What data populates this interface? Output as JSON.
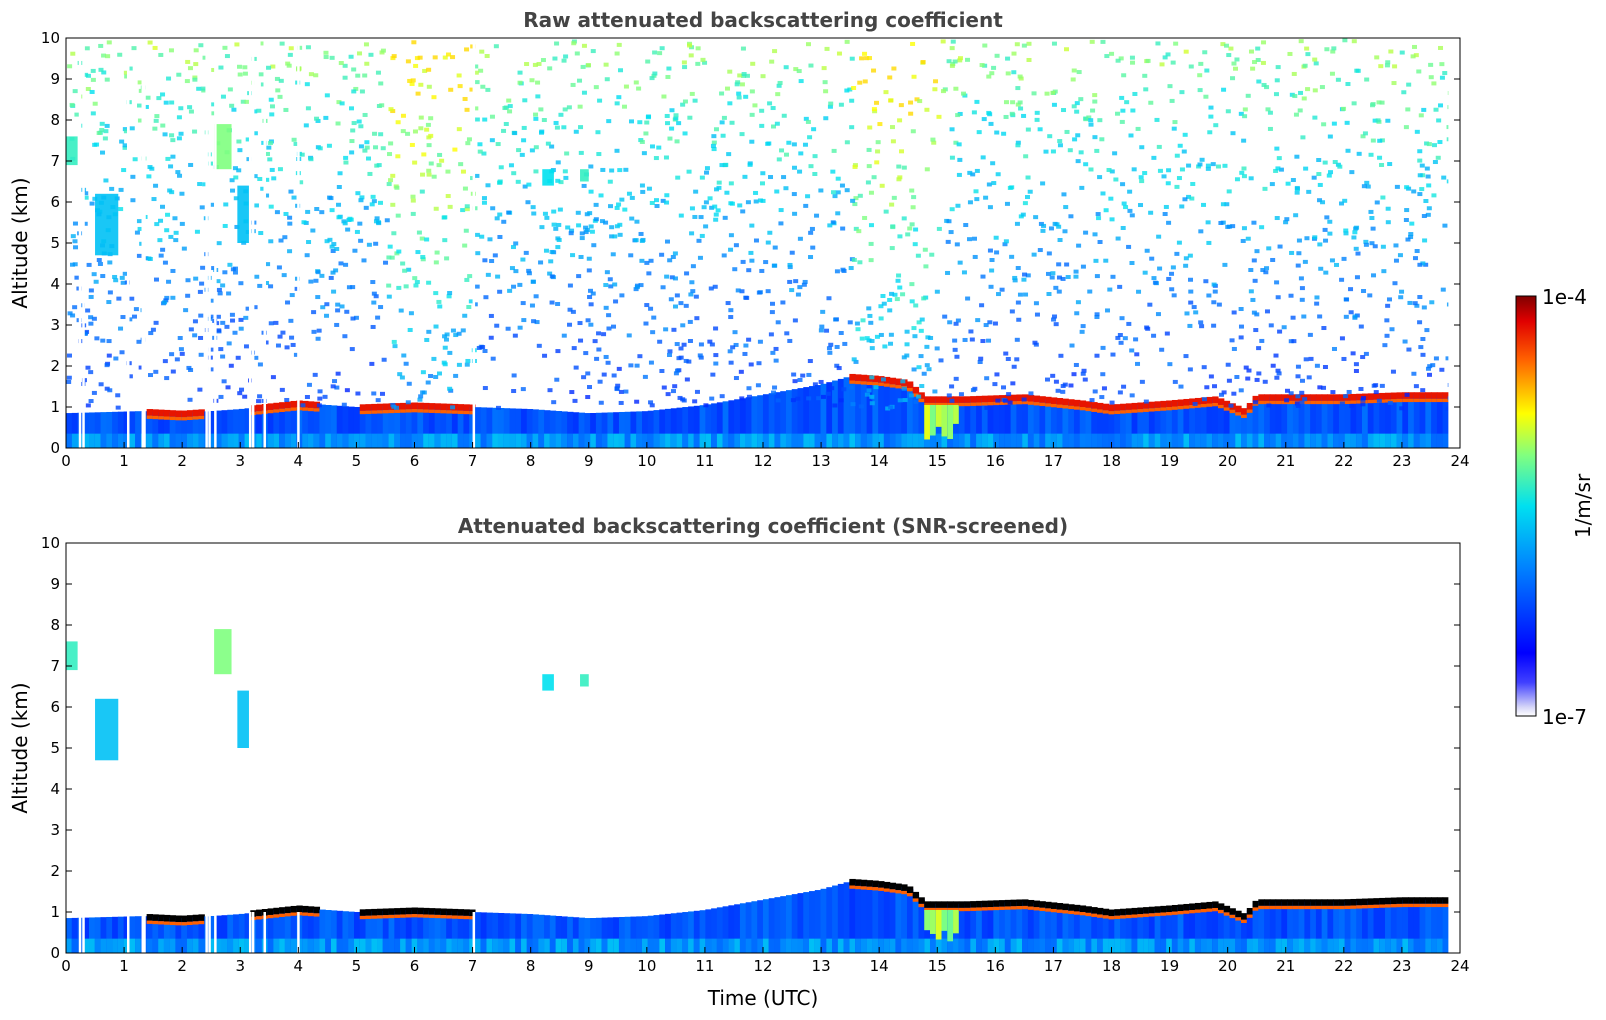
{
  "chart_data": [
    {
      "type": "heatmap",
      "title": "Raw attenuated backscattering coefficient",
      "xlabel": "",
      "ylabel": "Altitude (km)",
      "xlim": [
        0,
        24
      ],
      "ylim": [
        0,
        10
      ],
      "xticks": [
        0,
        1,
        2,
        3,
        4,
        5,
        6,
        7,
        8,
        9,
        10,
        11,
        12,
        13,
        14,
        15,
        16,
        17,
        18,
        19,
        20,
        21,
        22,
        23,
        24
      ],
      "yticks": [
        0,
        1,
        2,
        3,
        4,
        5,
        6,
        7,
        8,
        9,
        10
      ],
      "data_end_time": 23.8,
      "screened": false,
      "boundary_layer_top_km": [
        [
          0,
          0.85
        ],
        [
          1.3,
          0.9
        ],
        [
          2,
          0.85
        ],
        [
          3,
          0.95
        ],
        [
          4,
          1.1
        ],
        [
          5,
          1.0
        ],
        [
          6,
          1.05
        ],
        [
          7,
          1.0
        ],
        [
          8,
          0.95
        ],
        [
          9,
          0.85
        ],
        [
          10,
          0.9
        ],
        [
          11,
          1.05
        ],
        [
          12,
          1.3
        ],
        [
          13,
          1.55
        ],
        [
          13.5,
          1.75
        ],
        [
          14,
          1.7
        ],
        [
          14.5,
          1.6
        ],
        [
          14.8,
          1.2
        ],
        [
          15.5,
          1.2
        ],
        [
          16.5,
          1.25
        ],
        [
          17.5,
          1.1
        ],
        [
          18,
          1.0
        ],
        [
          19,
          1.1
        ],
        [
          19.8,
          1.2
        ],
        [
          20.3,
          0.9
        ],
        [
          20.5,
          1.25
        ],
        [
          21,
          1.25
        ],
        [
          22,
          1.25
        ],
        [
          23,
          1.3
        ],
        [
          23.8,
          1.3
        ]
      ],
      "elevated_layers": [
        {
          "t": [
            0,
            0.2
          ],
          "alt_km": [
            6.9,
            7.6
          ],
          "level": 0.55
        },
        {
          "t": [
            0.5,
            0.9
          ],
          "alt_km": [
            4.7,
            6.2
          ],
          "level": 0.45
        },
        {
          "t": [
            2.55,
            2.85
          ],
          "alt_km": [
            6.8,
            7.9
          ],
          "level": 0.62
        },
        {
          "t": [
            2.95,
            3.15
          ],
          "alt_km": [
            5.0,
            6.4
          ],
          "level": 0.45
        },
        {
          "t": [
            8.2,
            8.4
          ],
          "alt_km": [
            6.4,
            6.8
          ],
          "level": 0.5
        },
        {
          "t": [
            8.85,
            9.0
          ],
          "alt_km": [
            6.5,
            6.8
          ],
          "level": 0.55
        }
      ],
      "data_gaps_utc": [
        0.22,
        0.28,
        1.05,
        1.3,
        1.33,
        2.4,
        2.45,
        2.55,
        3.15,
        3.2,
        3.4,
        3.98,
        7.0
      ]
    },
    {
      "type": "heatmap",
      "title": "Attenuated backscattering coefficient (SNR-screened)",
      "xlabel": "Time (UTC)",
      "ylabel": "Altitude (km)",
      "xlim": [
        0,
        24
      ],
      "ylim": [
        0,
        10
      ],
      "xticks": [
        0,
        1,
        2,
        3,
        4,
        5,
        6,
        7,
        8,
        9,
        10,
        11,
        12,
        13,
        14,
        15,
        16,
        17,
        18,
        19,
        20,
        21,
        22,
        23,
        24
      ],
      "yticks": [
        0,
        1,
        2,
        3,
        4,
        5,
        6,
        7,
        8,
        9,
        10
      ],
      "data_end_time": 23.8,
      "screened": true
    }
  ],
  "colorbar": {
    "min_label": "1e-7",
    "max_label": "1e-4",
    "label": "1/m/sr",
    "colormap": "jet",
    "scale": "log"
  },
  "colors": {
    "title_gray": "#444444",
    "cloud_red": "#b20000",
    "boundary_blue": "#0a3cf0"
  }
}
